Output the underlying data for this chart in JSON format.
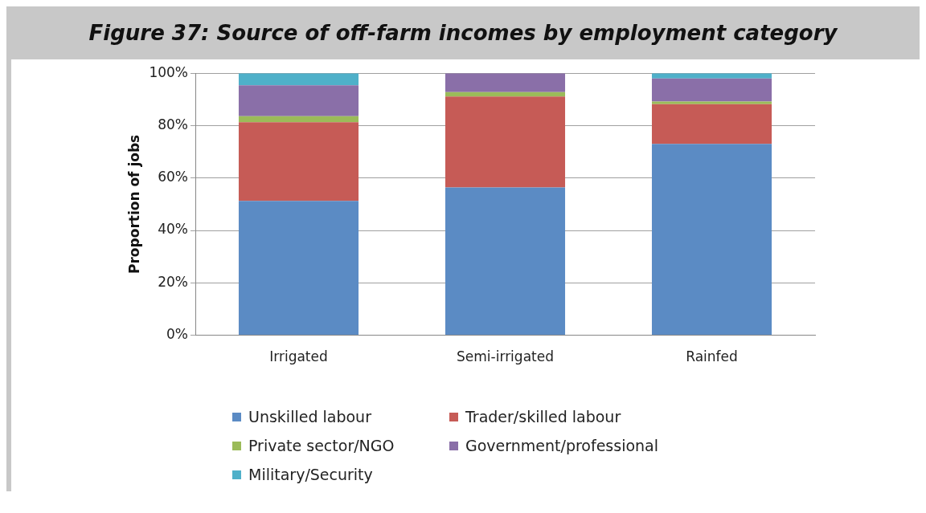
{
  "chart_data": {
    "type": "bar",
    "title": "Figure 37: Source of off-farm incomes by employment category",
    "ylabel": "Proportion of jobs",
    "categories": [
      "Irrigated",
      "Semi-irrigated",
      "Rainfed"
    ],
    "series": [
      {
        "name": "Unskilled labour",
        "color": "#5b8bc4",
        "values": [
          51.3,
          56.4,
          73
        ]
      },
      {
        "name": "Trader/skilled labour",
        "color": "#c65b56",
        "values": [
          30,
          34.7,
          15.2
        ]
      },
      {
        "name": "Private sector/NGO",
        "color": "#9bbb59",
        "values": [
          2.3,
          1.7,
          1
        ]
      },
      {
        "name": "Government/professional",
        "color": "#8a6fa8",
        "values": [
          11.8,
          7.2,
          8.8
        ]
      },
      {
        "name": "Military/Security",
        "color": "#4fb0c9",
        "values": [
          4.6,
          0,
          2
        ]
      }
    ],
    "stacked": true,
    "ylim": [
      0,
      100
    ],
    "yticks": [
      {
        "value": 0,
        "label": "0%"
      },
      {
        "value": 20,
        "label": "20%"
      },
      {
        "value": 40,
        "label": "40%"
      },
      {
        "value": 60,
        "label": "60%"
      },
      {
        "value": 80,
        "label": "80%"
      },
      {
        "value": 100,
        "label": "100%"
      }
    ],
    "grid": "y",
    "legend": "bottom"
  }
}
